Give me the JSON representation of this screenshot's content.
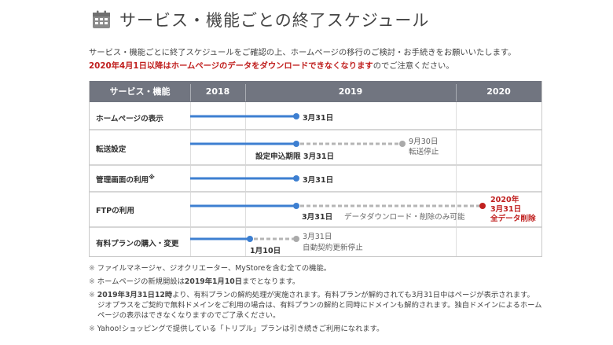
{
  "page_title": "サービス・機能ごとの終了スケジュール",
  "intro": {
    "line1": "サービス・機能ごとに終了スケジュールをご確認の上、ホームページの移行のご検討・お手続きをお願いいたします。",
    "line2_emphasis": "2020年4月1日以降はホームページのデータをダウンロードできなくなります",
    "line2_rest": "のでご注意ください。"
  },
  "table": {
    "header_service": "サービス・機能",
    "years": [
      "2018",
      "2019",
      "2020"
    ],
    "rows": [
      {
        "label": "ホームページの表示",
        "end_label": "3月31日"
      },
      {
        "label": "転送設定",
        "deadline_label": "設定申込期限 3月31日",
        "stop_date": "9月30日",
        "stop_text": "転送停止"
      },
      {
        "label": "管理画面の利用",
        "label_mark": "※",
        "end_label": "3月31日"
      },
      {
        "label": "FTPの利用",
        "end_label": "3月31日",
        "mid_text": "データダウンロード・削除のみ可能",
        "delete_line1": "2020年",
        "delete_line2": "3月31日",
        "delete_line3": "全データ削除"
      },
      {
        "label": "有料プランの購入・変更",
        "end_label": "1月10日",
        "stop_date": "3月31日",
        "stop_text": "自動契約更新停止"
      }
    ]
  },
  "notes": {
    "n1": "ファイルマネージャ、ジオクリエーター、MyStoreを含む全ての機能。",
    "n2_pre": "ホームページの新規開設は",
    "n2_bold": "2019年1月10日",
    "n2_post": "までとなります。",
    "n3_bold": "2019年3月31日12時",
    "n3_rest": "より、有料プランの解約処理が実施されます。有料プランが解約されても3月31日中はページが表示されます。",
    "n3_line2": "ジオプラスをご契約で無料ドメインをご利用の場合は、有料プランの解約と同時にドメインも解約されます。独自ドメインによるホーム",
    "n3_line3": "ページの表示はできなくなりますのでご了承ください。",
    "n4": "Yahoo!ショッピングで提供している「トリプル」プランは引き続きご利用になれます。",
    "mark": "※"
  },
  "colors": {
    "header_bg": "#717580",
    "blue": "#3d7fd1",
    "gray": "#aaaaaa",
    "red": "#c0201f"
  }
}
